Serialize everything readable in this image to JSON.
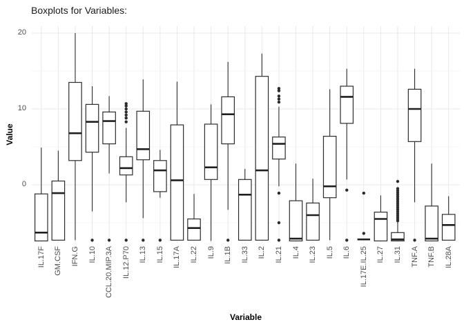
{
  "chart_data": {
    "type": "boxplot",
    "title": "Boxplots for Variables:",
    "xlabel": "Variable",
    "ylabel": "Value",
    "yticks": [
      20,
      10,
      0
    ],
    "yminor_gridlines": [
      15,
      5,
      -5
    ],
    "ylim": [
      -7.6,
      20.9
    ],
    "grid": true,
    "legend": "none",
    "colors": {
      "box_stroke": "#2b2b2b",
      "box_fill": "#ffffff",
      "median": "#1f1f1f",
      "outlier": "#2b2b2b",
      "grid_major": "#e8e8e8",
      "grid_minor": "#f4f4f4",
      "title_text": "#1a1a1a",
      "tick_text": "#4d4d4d"
    },
    "categories": [
      "IL.17F",
      "GM.CSF",
      "IFN.G",
      "IL.10",
      "CCL.20.MIP.3A",
      "IL.12.P70",
      "IL.13",
      "IL.15",
      "IL.17A",
      "IL.22",
      "IL.9",
      "IL.1B",
      "IL.33",
      "IL.2",
      "IL.21",
      "IL.4",
      "IL.23",
      "IL.5",
      "IL.6",
      "IL.17E.IL.25",
      "IL.27",
      "IL.31",
      "TNF.A",
      "TNF.B",
      "IL.28A"
    ],
    "boxes": [
      {
        "name": "IL.17F",
        "whislo": -7.4,
        "q1": -7.4,
        "med": -6.3,
        "q3": -1.2,
        "whishi": 4.9,
        "outliers": []
      },
      {
        "name": "GM.CSF",
        "whislo": -7.3,
        "q1": -7.3,
        "med": -1.1,
        "q3": 0.5,
        "whishi": 4.5,
        "outliers": []
      },
      {
        "name": "IFN.G",
        "whislo": -7.3,
        "q1": 3.2,
        "med": 6.8,
        "q3": 13.5,
        "whishi": 20.0,
        "outliers": []
      },
      {
        "name": "IL.10",
        "whislo": -3.5,
        "q1": 4.3,
        "med": 8.3,
        "q3": 10.6,
        "whishi": 13.0,
        "outliers": [
          -7.3
        ]
      },
      {
        "name": "CCL.20.MIP.3A",
        "whislo": 1.5,
        "q1": 5.4,
        "med": 8.4,
        "q3": 9.6,
        "whishi": 11.7,
        "outliers": [
          -7.3
        ]
      },
      {
        "name": "IL.12.P70",
        "whislo": -2.3,
        "q1": 1.3,
        "med": 2.2,
        "q3": 3.7,
        "whishi": 7.5,
        "outliers": [
          10.7,
          10.4,
          10.0,
          9.6,
          9.2,
          8.8,
          8.3,
          -7.3
        ]
      },
      {
        "name": "IL.13",
        "whislo": -4.4,
        "q1": 3.3,
        "med": 4.7,
        "q3": 9.7,
        "whishi": 13.9,
        "outliers": [
          -7.3
        ]
      },
      {
        "name": "IL.15",
        "whislo": -1.7,
        "q1": -0.9,
        "med": 1.9,
        "q3": 3.2,
        "whishi": 4.6,
        "outliers": [
          -7.3
        ]
      },
      {
        "name": "IL.17A",
        "whislo": -7.3,
        "q1": -7.3,
        "med": 0.6,
        "q3": 7.9,
        "whishi": 13.6,
        "outliers": []
      },
      {
        "name": "IL.22",
        "whislo": -7.3,
        "q1": -7.3,
        "med": -5.7,
        "q3": -4.5,
        "whishi": -1.2,
        "outliers": []
      },
      {
        "name": "IL.9",
        "whislo": -7.4,
        "q1": 0.7,
        "med": 2.3,
        "q3": 8.0,
        "whishi": 10.6,
        "outliers": []
      },
      {
        "name": "IL.1B",
        "whislo": -3.3,
        "q1": 5.4,
        "med": 9.3,
        "q3": 11.6,
        "whishi": 16.2,
        "outliers": [
          -7.3
        ]
      },
      {
        "name": "IL.33",
        "whislo": -7.3,
        "q1": -7.3,
        "med": -1.3,
        "q3": 0.7,
        "whishi": 2.1,
        "outliers": []
      },
      {
        "name": "IL.2",
        "whislo": -7.3,
        "q1": -7.3,
        "med": 1.9,
        "q3": 14.3,
        "whishi": 17.3,
        "outliers": []
      },
      {
        "name": "IL.21",
        "whislo": -0.2,
        "q1": 3.4,
        "med": 5.4,
        "q3": 6.3,
        "whishi": 10.3,
        "outliers": [
          12.7,
          12.4,
          11.7,
          11.3,
          10.9,
          -1.1,
          -5.0,
          -7.3
        ]
      },
      {
        "name": "IL.4",
        "whislo": -7.4,
        "q1": -7.4,
        "med": -7.1,
        "q3": -2.1,
        "whishi": 2.8,
        "outliers": []
      },
      {
        "name": "IL.23",
        "whislo": -7.3,
        "q1": -7.3,
        "med": -4.0,
        "q3": -2.4,
        "whishi": 0.8,
        "outliers": []
      },
      {
        "name": "IL.5",
        "whislo": -7.3,
        "q1": -1.7,
        "med": -0.2,
        "q3": 6.4,
        "whishi": 12.6,
        "outliers": []
      },
      {
        "name": "IL.6",
        "whislo": 0.7,
        "q1": 8.1,
        "med": 11.6,
        "q3": 13.0,
        "whishi": 15.3,
        "outliers": [
          -0.7,
          -7.3
        ]
      },
      {
        "name": "IL.17E.IL.25",
        "whislo": -7.2,
        "q1": -7.2,
        "med": -7.2,
        "q3": -7.2,
        "whishi": -7.2,
        "outliers": [
          -1.1,
          -6.4
        ]
      },
      {
        "name": "IL.27",
        "whislo": -7.4,
        "q1": -7.4,
        "med": -4.5,
        "q3": -3.6,
        "whishi": -1.4,
        "outliers": []
      },
      {
        "name": "IL.31",
        "whislo": -7.4,
        "q1": -7.4,
        "med": -7.2,
        "q3": -6.3,
        "whishi": -4.9,
        "outliers": [
          0.45,
          -0.5,
          -0.75,
          -1.0,
          -1.25,
          -1.5,
          -1.75,
          -2.0,
          -2.25,
          -2.5,
          -2.75,
          -3.0,
          -3.25,
          -3.5,
          -3.75,
          -4.0,
          -4.25,
          -4.5,
          -4.75
        ]
      },
      {
        "name": "TNF.A",
        "whislo": -2.3,
        "q1": 5.7,
        "med": 10.0,
        "q3": 12.6,
        "whishi": 15.3,
        "outliers": [
          -7.3
        ]
      },
      {
        "name": "TNF.B",
        "whislo": -7.4,
        "q1": -7.4,
        "med": -7.1,
        "q3": -2.8,
        "whishi": 2.8,
        "outliers": []
      },
      {
        "name": "IL.28A",
        "whislo": -7.3,
        "q1": -7.3,
        "med": -5.3,
        "q3": -3.9,
        "whishi": -1.5,
        "outliers": []
      }
    ]
  }
}
